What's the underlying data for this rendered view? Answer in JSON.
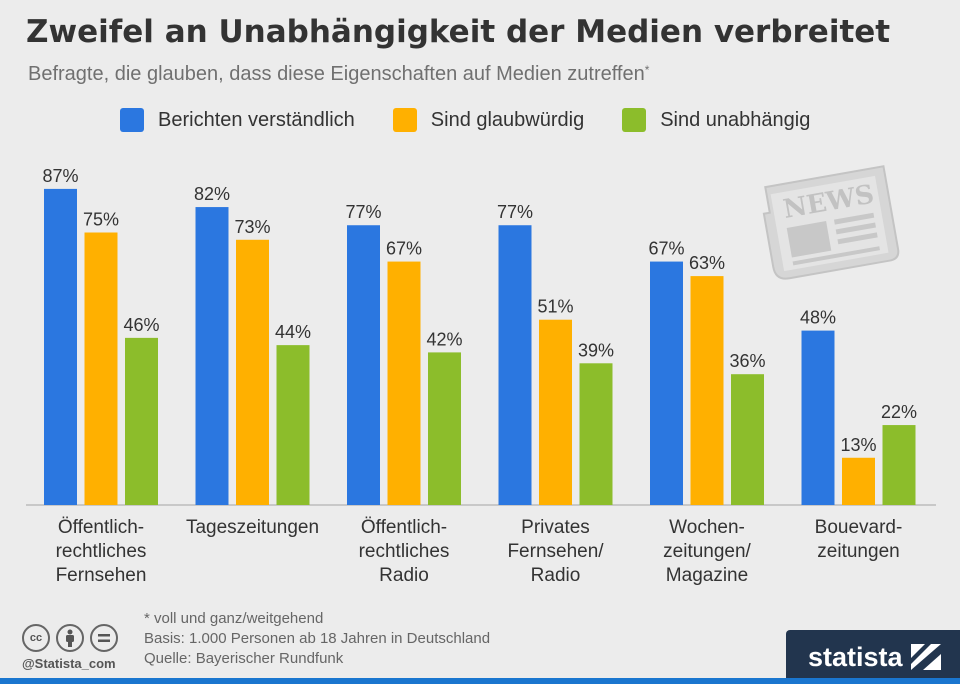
{
  "header": {
    "title": "Zweifel an Unabhängigkeit der Medien verbreitet",
    "subtitle": "Befragte, die glauben, dass diese Eigenschaften auf Medien zutreffen",
    "subtitle_mark": "*"
  },
  "legend": [
    {
      "label": "Berichten verständlich",
      "color": "#2b77e0"
    },
    {
      "label": "Sind glaubwürdig",
      "color": "#ffb000"
    },
    {
      "label": "Sind unabhängig",
      "color": "#8cbd2b"
    }
  ],
  "chart_data": {
    "type": "bar",
    "categories": [
      [
        "Öffentlich-",
        "rechtliches",
        "Fernsehen"
      ],
      [
        "Tageszeitungen"
      ],
      [
        "Öffentlich-",
        "rechtliches",
        "Radio"
      ],
      [
        "Privates",
        "Fernsehen/",
        "Radio"
      ],
      [
        "Wochen-",
        "zeitungen/",
        "Magazine"
      ],
      [
        "Bouevard-",
        "zeitungen"
      ]
    ],
    "series": [
      {
        "name": "Berichten verständlich",
        "color": "#2b77e0",
        "values": [
          87,
          82,
          77,
          77,
          67,
          48
        ]
      },
      {
        "name": "Sind glaubwürdig",
        "color": "#ffb000",
        "values": [
          75,
          73,
          67,
          51,
          63,
          13
        ]
      },
      {
        "name": "Sind unabhängig",
        "color": "#8cbd2b",
        "values": [
          46,
          44,
          42,
          39,
          36,
          22
        ]
      }
    ],
    "value_suffix": "%",
    "ylim": [
      0,
      100
    ],
    "grid": false,
    "legend_position": "top"
  },
  "footer": {
    "notes": [
      "* voll und ganz/weitgehend",
      "Basis: 1.000 Personen ab 18 Jahren in Deutschland",
      "Quelle: Bayerischer Rundfunk"
    ],
    "handle": "@Statista_com",
    "brand": "statista",
    "cc_icons": [
      "cc-icon",
      "by-icon",
      "nd-icon"
    ]
  },
  "news_icon_text": "NEWS"
}
